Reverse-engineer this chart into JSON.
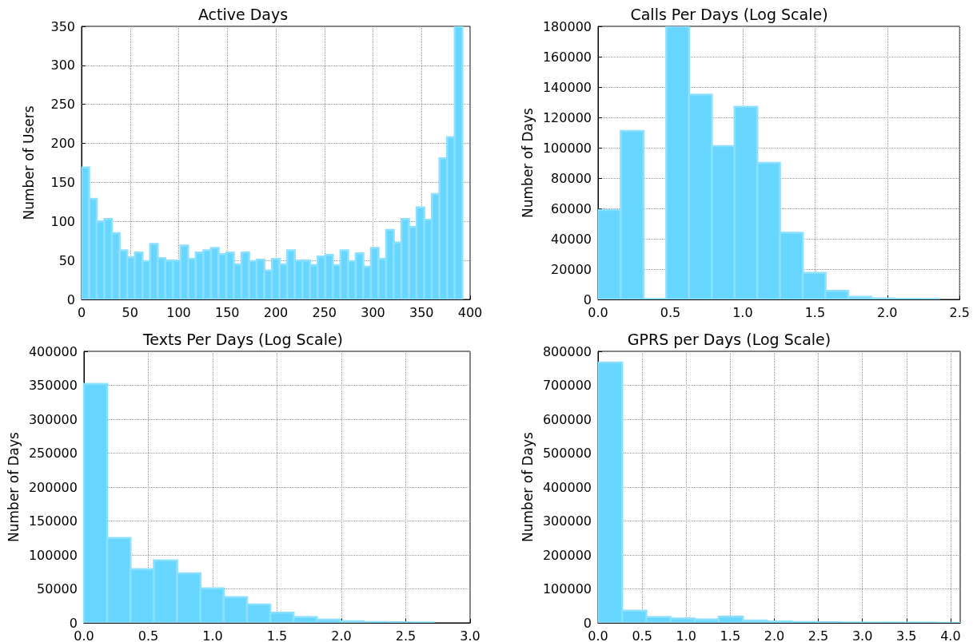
{
  "chart_data": [
    {
      "type": "histogram",
      "title": "Active Days",
      "ylabel": "Number of Users",
      "color": "#66d6ff",
      "bins": [
        0,
        7.84,
        15.68,
        23.52,
        31.36,
        39.2,
        47.04,
        54.88,
        62.72,
        70.56,
        78.4,
        86.24,
        94.08,
        101.92,
        109.76,
        117.6,
        125.44,
        133.28,
        141.12,
        148.96,
        156.8,
        164.64,
        172.48,
        180.32,
        188.16,
        196,
        203.84,
        211.68,
        219.52,
        227.36,
        235.2,
        243.04,
        250.88,
        258.72,
        266.56,
        274.4,
        282.24,
        290.08,
        297.92,
        305.76,
        313.6,
        321.44,
        329.28,
        337.12,
        344.96,
        352.8,
        360.64,
        368.48,
        376.32,
        384.16,
        392
      ],
      "values": [
        169,
        129,
        100,
        103,
        85,
        63,
        54,
        60,
        49,
        71,
        53,
        50,
        50,
        69,
        52,
        60,
        63,
        66,
        58,
        60,
        45,
        60,
        49,
        51,
        37,
        52,
        45,
        63,
        50,
        50,
        44,
        55,
        57,
        44,
        63,
        49,
        59,
        42,
        66,
        52,
        89,
        73,
        103,
        93,
        118,
        102,
        135,
        181,
        208,
        350
      ],
      "xlim": [
        0,
        400
      ],
      "xticks": [
        0,
        50,
        100,
        150,
        200,
        250,
        300,
        350,
        400
      ],
      "ylim": [
        0,
        350
      ],
      "yticks": [
        0,
        50,
        100,
        150,
        200,
        250,
        300,
        350
      ],
      "grid": true
    },
    {
      "type": "histogram",
      "title": "Calls Per Days (Log Scale)",
      "ylabel": "Number of Days",
      "color": "#66d6ff",
      "bins": [
        0,
        0.157,
        0.315,
        0.472,
        0.629,
        0.787,
        0.944,
        1.101,
        1.258,
        1.416,
        1.573,
        1.73,
        1.888,
        2.045,
        2.202,
        2.359
      ],
      "values": [
        59000,
        111000,
        300,
        180000,
        135000,
        101000,
        127000,
        90000,
        44000,
        17500,
        5600,
        1750,
        700,
        350,
        300
      ],
      "xlim": [
        0,
        2.5
      ],
      "xticks": [
        {
          "value": 0,
          "label": "0.0"
        },
        {
          "value": 0.5,
          "label": "0.5"
        },
        {
          "value": 1,
          "label": "1.0"
        },
        {
          "value": 1.5,
          "label": "1.5"
        },
        {
          "value": 2,
          "label": "2.0"
        },
        {
          "value": 2.5,
          "label": "2.5"
        }
      ],
      "ylim": [
        0,
        180000
      ],
      "yticks": [
        0,
        20000,
        40000,
        60000,
        80000,
        100000,
        120000,
        140000,
        160000,
        180000
      ],
      "grid": true
    },
    {
      "type": "histogram",
      "title": "Texts Per Days (Log Scale)",
      "ylabel": "Number of Days",
      "color": "#66d6ff",
      "bins": [
        0,
        0.181,
        0.362,
        0.543,
        0.724,
        0.905,
        1.086,
        1.267,
        1.448,
        1.629,
        1.81,
        1.991,
        2.172,
        2.353,
        2.534,
        2.715
      ],
      "values": [
        352000,
        125000,
        79000,
        92000,
        73000,
        51000,
        38000,
        27000,
        15000,
        8600,
        4700,
        2300,
        1200,
        800,
        600
      ],
      "xlim": [
        0,
        3
      ],
      "xticks": [
        {
          "value": 0,
          "label": "0.0"
        },
        {
          "value": 0.5,
          "label": "0.5"
        },
        {
          "value": 1,
          "label": "1.0"
        },
        {
          "value": 1.5,
          "label": "1.5"
        },
        {
          "value": 2,
          "label": "2.0"
        },
        {
          "value": 2.5,
          "label": "2.5"
        },
        {
          "value": 3,
          "label": "3.0"
        }
      ],
      "ylim": [
        0,
        400000
      ],
      "yticks": [
        0,
        50000,
        100000,
        150000,
        200000,
        250000,
        300000,
        350000,
        400000
      ],
      "grid": true
    },
    {
      "type": "histogram",
      "title": "GPRS per Days (Log Scale)",
      "ylabel": "Number of Days",
      "color": "#66d6ff",
      "bins": [
        0,
        0.274,
        0.548,
        0.822,
        1.096,
        1.37,
        1.644,
        1.918,
        2.192,
        2.466,
        2.74,
        3.014,
        3.288,
        3.562,
        3.836,
        4.11
      ],
      "values": [
        767000,
        36000,
        17000,
        13000,
        10000,
        18000,
        7000,
        3900,
        2300,
        1500,
        1000,
        700,
        500,
        300,
        200
      ],
      "xlim": [
        0,
        4.11
      ],
      "xticks": [
        {
          "value": 0,
          "label": "0.0"
        },
        {
          "value": 0.5,
          "label": "0.5"
        },
        {
          "value": 1,
          "label": "1.0"
        },
        {
          "value": 1.5,
          "label": "1.5"
        },
        {
          "value": 2,
          "label": "2.0"
        },
        {
          "value": 2.5,
          "label": "2.5"
        },
        {
          "value": 3,
          "label": "3.0"
        },
        {
          "value": 3.5,
          "label": "3.5"
        },
        {
          "value": 4,
          "label": "4.0"
        }
      ],
      "ylim": [
        0,
        800000
      ],
      "yticks": [
        0,
        100000,
        200000,
        300000,
        400000,
        500000,
        600000,
        700000,
        800000
      ],
      "grid": true
    }
  ]
}
